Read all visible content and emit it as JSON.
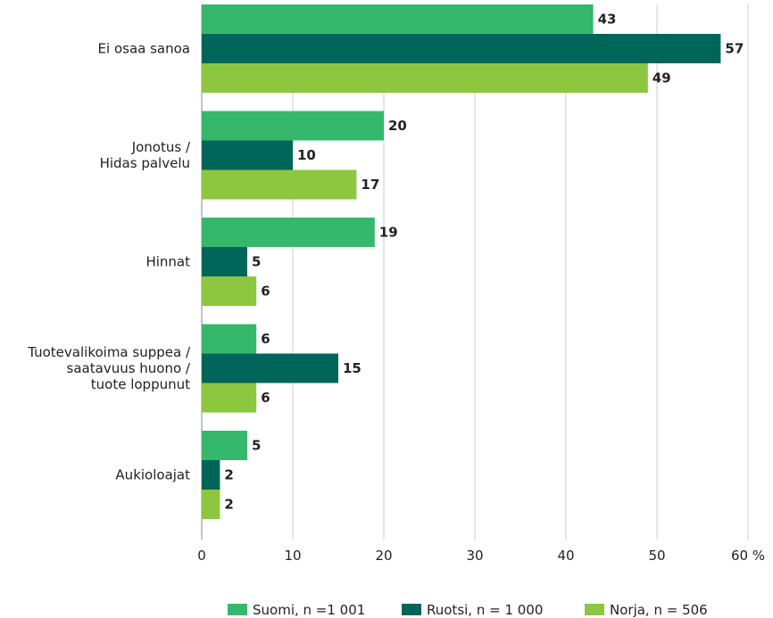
{
  "chart_data": {
    "type": "bar",
    "orientation": "horizontal",
    "categories": [
      [
        "Ei osaa sanoa"
      ],
      [
        "Jonotus /",
        "Hidas palvelu"
      ],
      [
        "Hinnat"
      ],
      [
        "Tuotevalikoima suppea /",
        "saatavuus huono /",
        "tuote loppunut"
      ],
      [
        "Aukioloajat"
      ]
    ],
    "series": [
      {
        "name": "Suomi, n =1 001",
        "color": "#35b86b",
        "values": [
          43,
          20,
          19,
          6,
          5
        ]
      },
      {
        "name": "Ruotsi, n = 1 000",
        "color": "#00665a",
        "values": [
          57,
          10,
          5,
          15,
          2
        ]
      },
      {
        "name": "Norja, n = 506",
        "color": "#8dc63f",
        "values": [
          49,
          17,
          6,
          6,
          2
        ]
      }
    ],
    "xlim": [
      0,
      60
    ],
    "xticks": [
      "0",
      "10",
      "20",
      "30",
      "40",
      "50",
      "60 %"
    ],
    "grid": true,
    "legend_position": "bottom"
  }
}
